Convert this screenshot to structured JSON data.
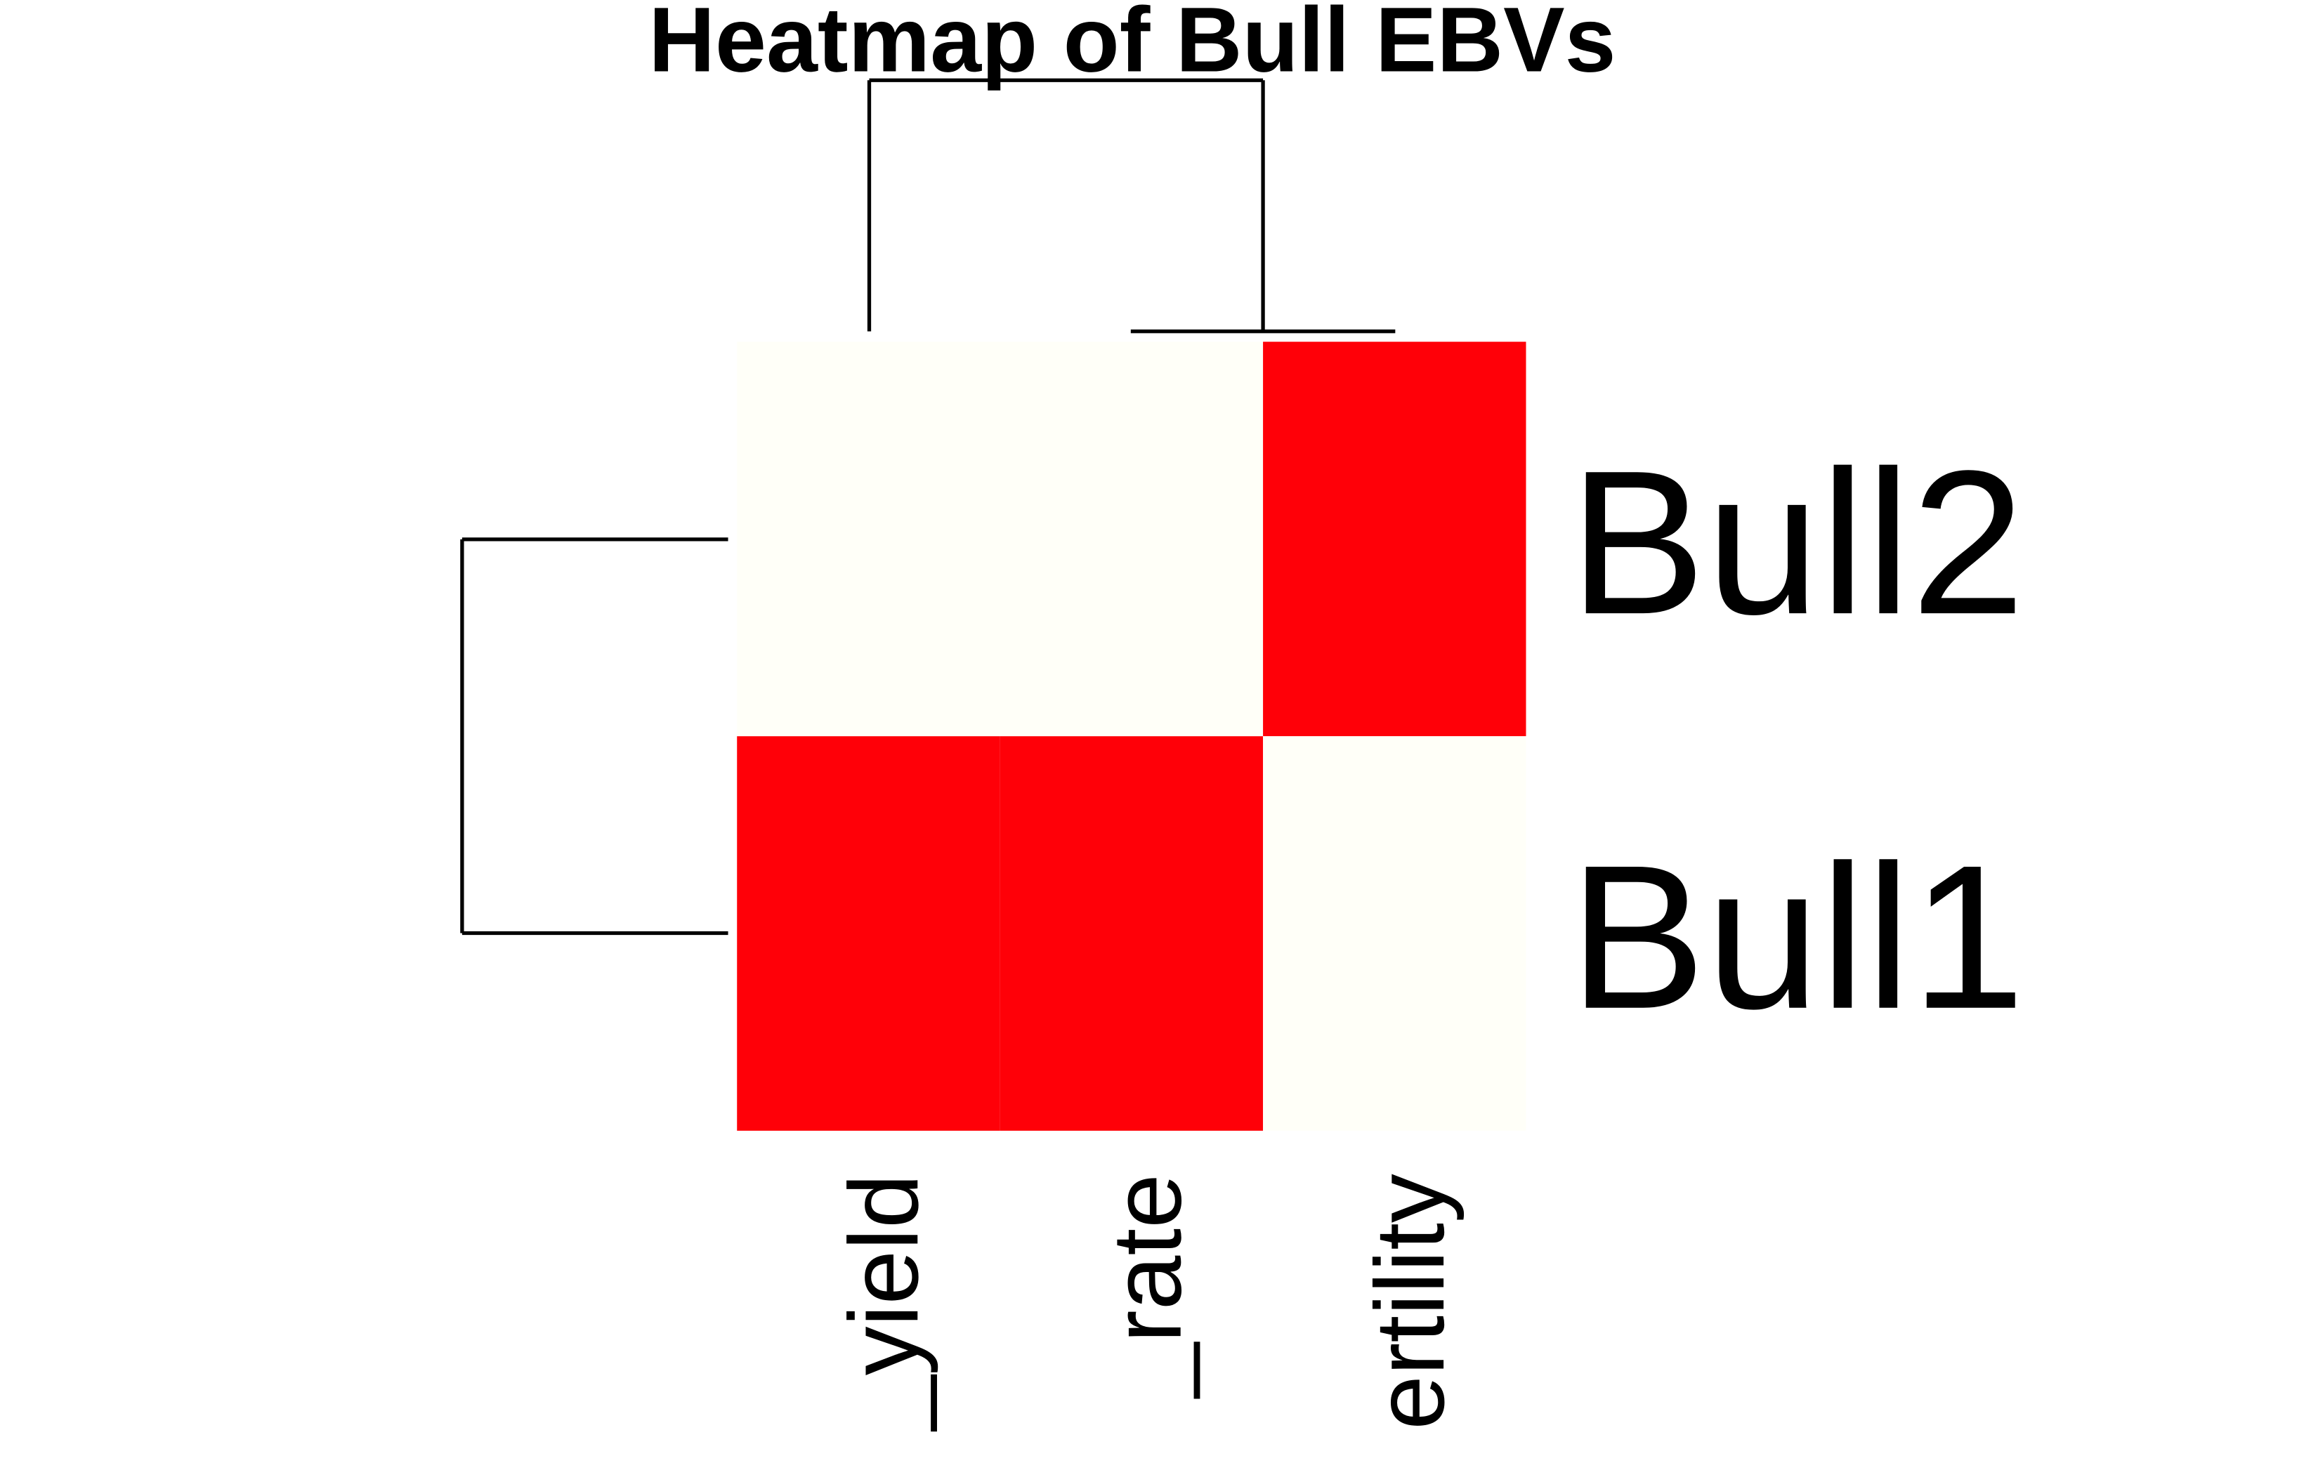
{
  "chart_data": {
    "type": "heatmap",
    "title": "Heatmap of Bull EBVs",
    "rows": [
      "Bull2",
      "Bull1"
    ],
    "columns": [
      "_yield",
      "_rate",
      "ertility"
    ],
    "values": [
      [
        0,
        0,
        1
      ],
      [
        1,
        1,
        0
      ]
    ],
    "colors": [
      "#fffff8",
      "#ff0008"
    ]
  }
}
